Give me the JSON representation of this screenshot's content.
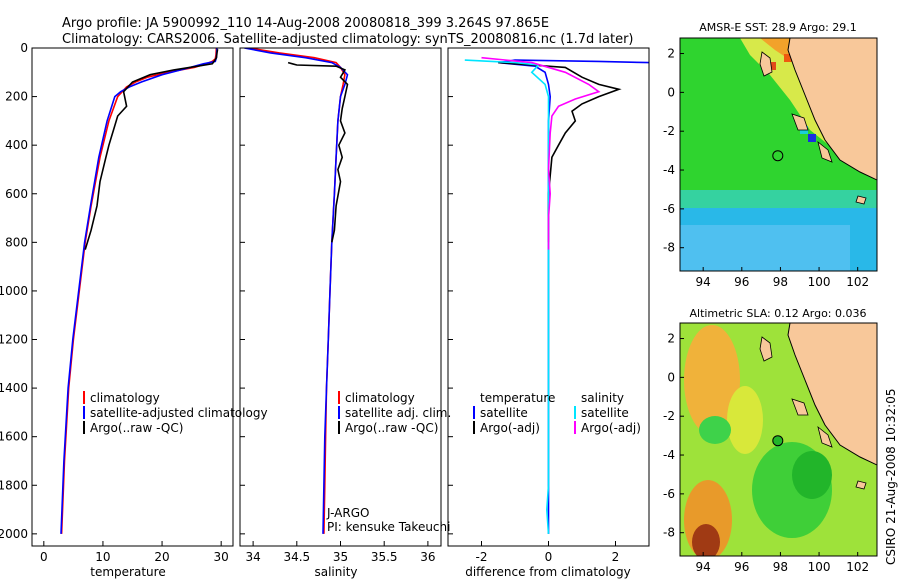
{
  "header": {
    "line1": "Argo profile: JA 5900992_110 14-Aug-2008 20080818_399 3.264S 97.865E",
    "line2": "Climatology: CARS2006. Satellite-adjusted climatology: synTS_20080816.nc (1.7d later)"
  },
  "side_stamp": "CSIRO 21-Aug-2008 10:32:05",
  "colors": {
    "climatology": "#ff0000",
    "satellite": "#0000ff",
    "argo": "#000000",
    "argo_adj": "#ff00ff",
    "satellite_diff": "#00e5ff",
    "land": "#f8c89a"
  },
  "chart_data": [
    {
      "type": "line",
      "xlabel": "temperature",
      "xlim": [
        -2,
        32
      ],
      "ylim": [
        2050,
        0
      ],
      "xticks": [
        "0",
        "10",
        "20",
        "30"
      ],
      "yticks": [
        "0",
        "200",
        "400",
        "600",
        "800",
        "1000",
        "1200",
        "1400",
        "1600",
        "1800",
        "2000"
      ],
      "legend": [
        "climatology",
        "satellite-adjusted climatology",
        "Argo(..raw -QC)"
      ],
      "series": [
        {
          "name": "climatology",
          "color": "#ff0000",
          "x": [
            29.2,
            29.1,
            29.0,
            28.5,
            27.5,
            25.5,
            21,
            17.5,
            15.5,
            14,
            12.5,
            11,
            9.5,
            8,
            7,
            6,
            5,
            4.2,
            3.5,
            3
          ],
          "y": [
            0,
            30,
            45,
            55,
            65,
            80,
            100,
            120,
            140,
            160,
            200,
            300,
            450,
            650,
            800,
            1000,
            1200,
            1400,
            1700,
            2000
          ]
        },
        {
          "name": "satellite-adjusted climatology",
          "color": "#0000ff",
          "x": [
            29.3,
            29.2,
            29.0,
            27,
            24,
            20,
            16.5,
            14.5,
            13,
            12,
            10.7,
            9.3,
            7.9,
            6.9,
            5.9,
            4.9,
            4.1,
            3.4,
            2.9
          ],
          "y": [
            0,
            40,
            55,
            65,
            85,
            110,
            140,
            160,
            180,
            200,
            300,
            450,
            650,
            800,
            1000,
            1200,
            1400,
            1700,
            2000
          ]
        },
        {
          "name": "Argo(..raw -QC)",
          "color": "#000000",
          "x": [
            29.4,
            29.3,
            29.2,
            28.8,
            28.5,
            26,
            22,
            18,
            15,
            13.5,
            14,
            12.5,
            12,
            11,
            10.5,
            9.5,
            9,
            8,
            7
          ],
          "y": [
            5,
            20,
            40,
            55,
            65,
            75,
            90,
            110,
            140,
            180,
            240,
            280,
            320,
            400,
            450,
            550,
            650,
            750,
            830
          ]
        }
      ]
    },
    {
      "type": "line",
      "xlabel": "salinity",
      "xlim": [
        33.85,
        36.15
      ],
      "ylim": [
        2050,
        0
      ],
      "xticks": [
        "34",
        "34.5",
        "35",
        "35.5",
        "36"
      ],
      "legend": [
        "climatology",
        "satellite adj. clim.",
        "Argo(..raw -QC)"
      ],
      "annotations": [
        "J-ARGO",
        "PI: kensuke Takeuchi"
      ],
      "series": [
        {
          "name": "climatology",
          "color": "#ff0000",
          "x": [
            33.95,
            34.3,
            34.7,
            34.95,
            35.0,
            35.05,
            35.03,
            35.0,
            34.97,
            34.95,
            34.93,
            34.9,
            34.88,
            34.86,
            34.84,
            34.83,
            34.82,
            34.81
          ],
          "y": [
            0,
            20,
            40,
            60,
            80,
            110,
            150,
            200,
            300,
            450,
            600,
            800,
            1000,
            1200,
            1400,
            1600,
            1800,
            2000
          ]
        },
        {
          "name": "satellite adj. clim.",
          "color": "#0000ff",
          "x": [
            33.9,
            34.2,
            34.6,
            34.9,
            35.0,
            35.08,
            35.05,
            35.0,
            34.97,
            34.95,
            34.93,
            34.9,
            34.88,
            34.86,
            34.84,
            34.82,
            34.81,
            34.8
          ],
          "y": [
            0,
            20,
            40,
            60,
            80,
            110,
            150,
            200,
            300,
            450,
            600,
            800,
            1000,
            1200,
            1400,
            1600,
            1800,
            2000
          ]
        },
        {
          "name": "Argo(..raw -QC)",
          "color": "#000000",
          "x": [
            34.4,
            34.45,
            34.5,
            34.95,
            35.05,
            35.0,
            35.08,
            35.05,
            35.02,
            35.0,
            35.05,
            34.98,
            35.02,
            34.97,
            35.0,
            34.95,
            34.93,
            34.9
          ],
          "y": [
            60,
            65,
            70,
            75,
            90,
            120,
            150,
            200,
            250,
            300,
            350,
            400,
            450,
            500,
            550,
            650,
            750,
            800
          ]
        }
      ]
    },
    {
      "type": "line",
      "xlabel": "difference from climatology",
      "xlim": [
        -3,
        3
      ],
      "ylim": [
        2050,
        0
      ],
      "xticks": [
        "-2",
        "0",
        "2"
      ],
      "legend": [
        "temperature",
        "satellite",
        "Argo(-adj)",
        "salinity",
        "satellite",
        "Argo(-adj)"
      ],
      "series": [
        {
          "name": "temperature satellite",
          "color": "#0000ff",
          "x": [
            3,
            1.5,
            -1.0,
            -1.5,
            -0.4,
            -0.1,
            0,
            0.05,
            0,
            0,
            0,
            0,
            0,
            0,
            0
          ],
          "y": [
            60,
            55,
            50,
            60,
            75,
            100,
            150,
            200,
            300,
            500,
            800,
            1100,
            1400,
            1700,
            2000
          ]
        },
        {
          "name": "temperature Argo(-adj)",
          "color": "#000000",
          "x": [
            -1.5,
            -0.5,
            0.5,
            1.0,
            1.5,
            2.1,
            1.5,
            1.0,
            0.7,
            0.8,
            0.5,
            0.3,
            0.1,
            0,
            0
          ],
          "y": [
            60,
            70,
            80,
            120,
            150,
            170,
            200,
            230,
            260,
            300,
            350,
            400,
            450,
            600,
            800
          ]
        },
        {
          "name": "salinity satellite",
          "color": "#00e5ff",
          "x": [
            -2.5,
            -1.0,
            -0.3,
            -0.5,
            -0.1,
            0,
            0,
            0,
            0,
            0,
            0,
            0,
            0,
            -0.05,
            0
          ],
          "y": [
            50,
            60,
            70,
            100,
            150,
            200,
            300,
            500,
            800,
            1100,
            1400,
            1600,
            1800,
            1900,
            2000
          ]
        },
        {
          "name": "salinity Argo(-adj)",
          "color": "#ff00ff",
          "x": [
            -2.0,
            -0.5,
            0.5,
            1.2,
            1.5,
            0.8,
            0.3,
            0.1,
            0.05,
            0,
            0.05,
            0,
            0,
            0
          ],
          "y": [
            40,
            60,
            100,
            150,
            180,
            210,
            240,
            280,
            350,
            500,
            600,
            700,
            800,
            830
          ]
        }
      ]
    },
    {
      "type": "heatmap",
      "title": "AMSR-E SST: 28.9 Argo: 29.1",
      "xlim": [
        92.8,
        103
      ],
      "ylim": [
        -9.2,
        2.8
      ],
      "xticks": [
        "94",
        "96",
        "98",
        "100",
        "102"
      ],
      "yticks": [
        "2",
        "0",
        "-2",
        "-4",
        "-6",
        "-8"
      ],
      "argo_location": [
        97.865,
        -3.264
      ],
      "sst_argo": 29.1,
      "sst_satellite": 28.9
    },
    {
      "type": "heatmap",
      "title": "Altimetric SLA: 0.12 Argo: 0.036",
      "xlim": [
        92.8,
        103
      ],
      "ylim": [
        -9.2,
        2.8
      ],
      "xticks": [
        "94",
        "96",
        "98",
        "100",
        "102"
      ],
      "yticks": [
        "2",
        "0",
        "-2",
        "-4",
        "-6",
        "-8"
      ],
      "argo_location": [
        97.865,
        -3.264
      ],
      "sla_argo": 0.036,
      "sla_satellite": 0.12
    }
  ]
}
